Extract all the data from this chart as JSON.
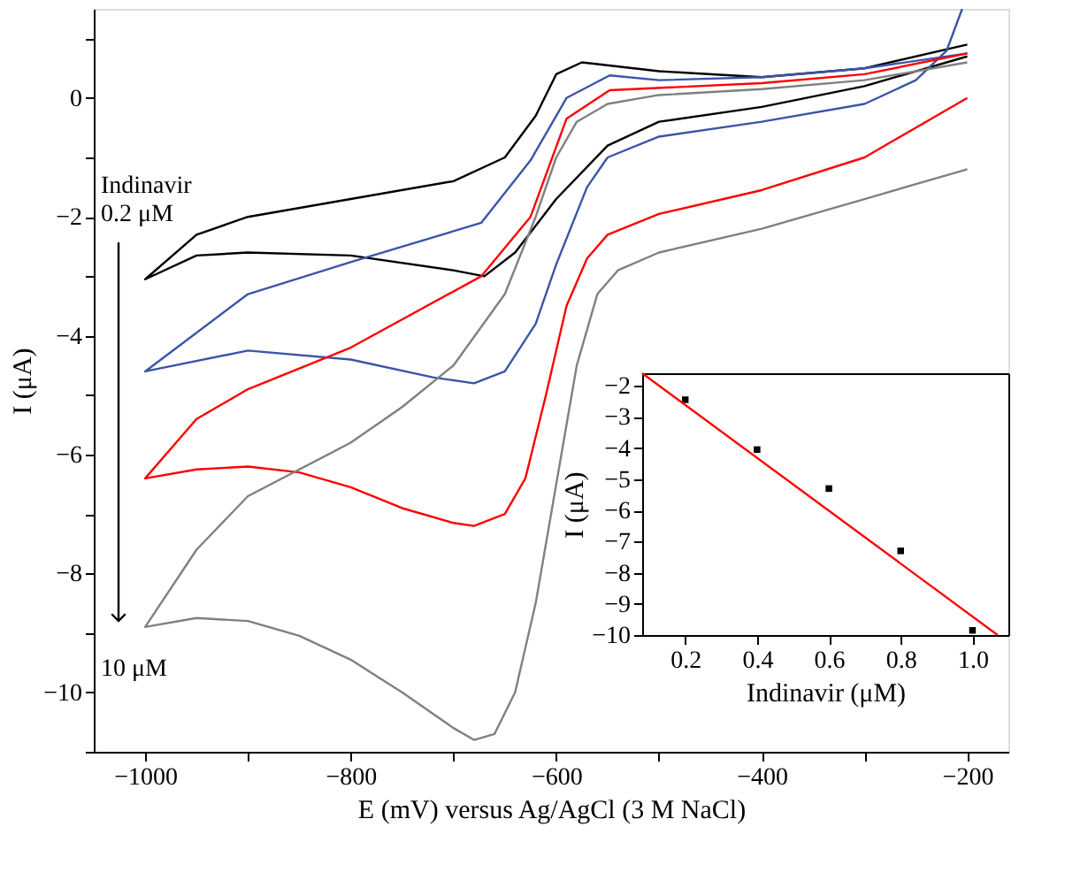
{
  "chart_data": [
    {
      "type": "line",
      "xlabel": "E (mV) versus Ag/AgCl (3 M NaCl)",
      "ylabel": "I (μA)",
      "xlim": [
        -1050,
        -160
      ],
      "ylim": [
        -11,
        1.5
      ],
      "xticks": [
        -1000,
        {
          "value": -900,
          "label": null
        },
        -800,
        {
          "value": -700,
          "label": null
        },
        -600,
        {
          "value": -500,
          "label": null
        },
        -400,
        {
          "value": -300,
          "label": null
        },
        -200
      ],
      "yticks": [
        {
          "value": -11,
          "label": null
        },
        -10,
        {
          "value": -9,
          "label": null
        },
        -8,
        {
          "value": -7,
          "label": null
        },
        -6,
        {
          "value": -5,
          "label": null
        },
        -4,
        {
          "value": -3,
          "label": null
        },
        -2,
        {
          "value": -1,
          "label": null
        },
        0,
        {
          "value": 1,
          "label": null
        }
      ],
      "annotations": [
        "Indinavir\n0.2 μM",
        "10 μM"
      ],
      "series": [
        {
          "color": "#000000",
          "x": [
            -200,
            -300,
            -400,
            -500,
            -575,
            -600,
            -620,
            -650,
            -700,
            -800,
            -900,
            -950,
            -1000,
            -950,
            -900,
            -800,
            -700,
            -670,
            -640,
            -600,
            -550,
            -500,
            -400,
            -300,
            -200
          ],
          "values": [
            0.9,
            0.5,
            0.35,
            0.45,
            0.6,
            0.4,
            -0.3,
            -1.0,
            -1.4,
            -1.7,
            -2.0,
            -2.3,
            -3.05,
            -2.65,
            -2.6,
            -2.65,
            -2.9,
            -3.0,
            -2.6,
            -1.7,
            -0.8,
            -0.4,
            -0.15,
            0.2,
            0.7
          ]
        },
        {
          "color": "#3a55a8",
          "x": [
            -200,
            -300,
            -400,
            -500,
            -548,
            -590,
            -625,
            -673,
            -798,
            -900,
            -1000,
            -900,
            -800,
            -720,
            -680,
            -650,
            -620,
            -600,
            -570,
            -550,
            -500,
            -400,
            -300,
            -250,
            -220,
            -205
          ],
          "values": [
            0.75,
            0.5,
            0.35,
            0.3,
            0.38,
            0.0,
            -1.05,
            -2.1,
            -2.75,
            -3.3,
            -4.6,
            -4.25,
            -4.4,
            -4.7,
            -4.8,
            -4.6,
            -3.8,
            -2.8,
            -1.5,
            -1.0,
            -0.65,
            -0.4,
            -0.1,
            0.3,
            0.8,
            1.5
          ]
        },
        {
          "color": "#ff0000",
          "x": [
            -200,
            -300,
            -400,
            -548,
            -590,
            -625,
            -673,
            -800,
            -900,
            -950,
            -1000,
            -950,
            -900,
            -850,
            -800,
            -750,
            -700,
            -680,
            -650,
            -630,
            -610,
            -590,
            -570,
            -550,
            -500,
            -400,
            -300,
            -200
          ],
          "values": [
            0.75,
            0.4,
            0.25,
            0.13,
            -0.35,
            -2.0,
            -3.0,
            -4.2,
            -4.9,
            -5.4,
            -6.4,
            -6.25,
            -6.2,
            -6.3,
            -6.55,
            -6.9,
            -7.15,
            -7.2,
            -7.0,
            -6.4,
            -5.0,
            -3.5,
            -2.7,
            -2.3,
            -1.95,
            -1.55,
            -1.0,
            0.0
          ]
        },
        {
          "color": "#808080",
          "x": [
            -200,
            -300,
            -400,
            -500,
            -550,
            -580,
            -600,
            -620,
            -650,
            -700,
            -750,
            -800,
            -900,
            -950,
            -1000,
            -950,
            -900,
            -850,
            -800,
            -750,
            -700,
            -680,
            -660,
            -640,
            -620,
            -600,
            -580,
            -560,
            -540,
            -500,
            -400,
            -300,
            -200
          ],
          "values": [
            0.6,
            0.3,
            0.15,
            0.05,
            -0.1,
            -0.4,
            -1.0,
            -2.0,
            -3.3,
            -4.5,
            -5.2,
            -5.8,
            -6.7,
            -7.6,
            -8.9,
            -8.75,
            -8.8,
            -9.05,
            -9.45,
            -10.0,
            -10.6,
            -10.8,
            -10.7,
            -10.0,
            -8.5,
            -6.5,
            -4.5,
            -3.3,
            -2.9,
            -2.6,
            -2.2,
            -1.7,
            -1.2
          ]
        }
      ]
    },
    {
      "type": "scatter",
      "xlabel": "Indinavir (μM)",
      "ylabel": "I (μA)",
      "xlim": [
        0.08,
        1.1
      ],
      "ylim": [
        -10,
        -1.6
      ],
      "marker": "square",
      "xticks": [
        0.2,
        0.4,
        0.6,
        0.8,
        {
          "value": 1.0,
          "label": "1.0"
        }
      ],
      "yticks": [
        -2,
        -3,
        -4,
        -5,
        -6,
        -7,
        -8,
        -9,
        -10
      ],
      "series": [
        {
          "color": "#000000",
          "x": [
            0.2,
            0.4,
            0.6,
            0.8,
            1.0
          ],
          "values": [
            -2.45,
            -4.05,
            -5.3,
            -7.3,
            -9.85
          ]
        },
        {
          "type": "line",
          "marker": "none",
          "color": "#ff0000",
          "x": [
            0.08,
            1.07
          ],
          "values": [
            -1.6,
            -10.0
          ]
        }
      ]
    }
  ]
}
